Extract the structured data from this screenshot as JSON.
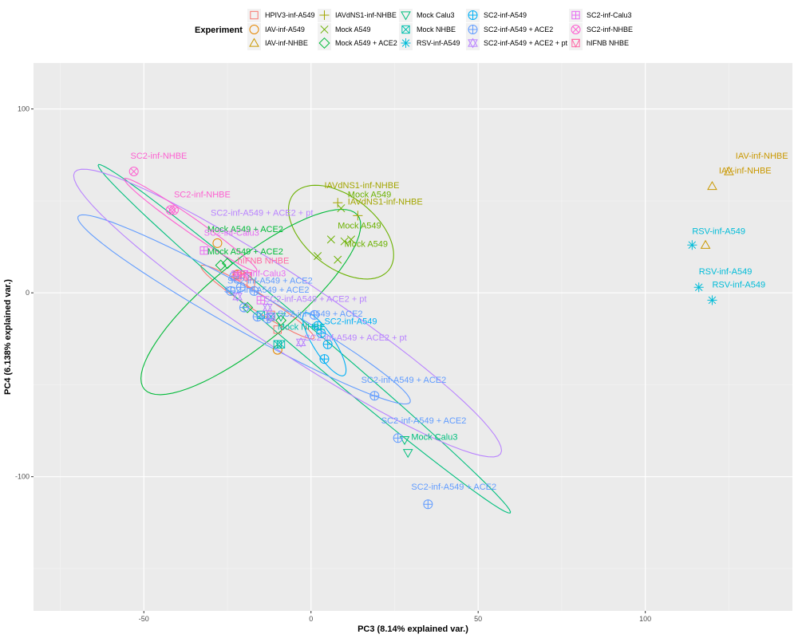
{
  "chart_data": {
    "type": "scatter",
    "xlabel": "PC3 (8.14% explained var.)",
    "ylabel": "PC4 (6.138% explained var.)",
    "xlim": [
      -83,
      144
    ],
    "ylim": [
      -173,
      125
    ],
    "x_ticks": [
      -50,
      0,
      50,
      100
    ],
    "y_ticks": [
      -100,
      0,
      100
    ],
    "grid": true,
    "background": "#EBEBEB",
    "legend_title": "Experiment",
    "legend_position": "top",
    "series": [
      {
        "name": "HPIV3-inf-A549",
        "color": "#F8766D",
        "shape": "square",
        "points": [
          [
            -22,
            10
          ],
          [
            -19,
            9
          ],
          [
            -12,
            -12
          ],
          [
            -10,
            -20
          ],
          [
            -18,
            5
          ]
        ],
        "labels": [],
        "ellipse": {
          "cx": -16,
          "cy": -5,
          "rx": 26,
          "ry": 3.5,
          "angle": -50
        }
      },
      {
        "name": "IAV-inf-A549",
        "color": "#E58700",
        "shape": "circle",
        "points": [
          [
            -28,
            27
          ],
          [
            -22,
            10
          ],
          [
            -10,
            -31
          ]
        ],
        "labels": [],
        "ellipse": null
      },
      {
        "name": "IAV-inf-NHBE",
        "color": "#C99800",
        "shape": "triangle",
        "points": [
          [
            120,
            58
          ],
          [
            125,
            66
          ],
          [
            118,
            26
          ]
        ],
        "labels": [
          {
            "x": 122,
            "y": 65,
            "text": "IAV-inf-NHBE"
          },
          {
            "x": 127,
            "y": 73,
            "text": "IAV-inf-NHBE"
          }
        ],
        "ellipse": null
      },
      {
        "name": "IAVdNS1-inf-NHBE",
        "color": "#A3A500",
        "shape": "plus",
        "points": [
          [
            8,
            49
          ],
          [
            14,
            42
          ]
        ],
        "labels": [
          {
            "x": 4,
            "y": 57,
            "text": "IAVdNS1-inf-NHBE"
          },
          {
            "x": 11,
            "y": 48,
            "text": "IAVdNS1-inf-NHBE"
          }
        ],
        "ellipse": null
      },
      {
        "name": "Mock A549",
        "color": "#6BB100",
        "shape": "cross",
        "points": [
          [
            2,
            20
          ],
          [
            6,
            29
          ],
          [
            8,
            18
          ],
          [
            10,
            28
          ],
          [
            12,
            29
          ],
          [
            9,
            46
          ]
        ],
        "labels": [
          {
            "x": 11,
            "y": 52,
            "text": "Mock A549"
          },
          {
            "x": 8,
            "y": 35,
            "text": "Mock A549"
          },
          {
            "x": 10,
            "y": 25,
            "text": "Mock A549"
          }
        ],
        "ellipse": {
          "cx": 9,
          "cy": 33,
          "rx": 13,
          "ry": 27,
          "angle": 22
        }
      },
      {
        "name": "Mock A549 + ACE2",
        "color": "#00BA38",
        "shape": "diamond",
        "points": [
          [
            -27,
            15
          ],
          [
            -25,
            16
          ],
          [
            -19,
            -8
          ],
          [
            -9,
            -15
          ]
        ],
        "labels": [
          {
            "x": -31,
            "y": 33,
            "text": "Mock A549 + ACE2"
          },
          {
            "x": -31,
            "y": 21,
            "text": "Mock A549 + ACE2"
          }
        ],
        "ellipse": {
          "cx": -18,
          "cy": -5,
          "rx": 16,
          "ry": 58,
          "angle": -31
        }
      },
      {
        "name": "Mock Calu3",
        "color": "#00BF7D",
        "shape": "trinv",
        "points": [
          [
            28,
            -80
          ],
          [
            29,
            -87
          ],
          [
            -9,
            -13
          ]
        ],
        "labels": [
          {
            "x": 30,
            "y": -80,
            "text": "Mock Calu3"
          }
        ],
        "ellipse": {
          "cx": -2,
          "cy": -25,
          "rx": 113,
          "ry": 5,
          "angle": -57
        }
      },
      {
        "name": "Mock NHBE",
        "color": "#00C0AF",
        "shape": "squarex",
        "points": [
          [
            -15,
            -12
          ],
          [
            -12,
            -13
          ],
          [
            -10,
            -28
          ],
          [
            -9,
            -28
          ]
        ],
        "labels": [
          {
            "x": -10,
            "y": -20,
            "text": "Mock NHBE"
          }
        ],
        "ellipse": null
      },
      {
        "name": "RSV-inf-A549",
        "color": "#00BCD8",
        "shape": "asterisk",
        "points": [
          [
            114,
            26
          ],
          [
            116,
            3
          ],
          [
            120,
            -4
          ]
        ],
        "labels": [
          {
            "x": 114,
            "y": 32,
            "text": "RSV-inf-A549"
          },
          {
            "x": 116,
            "y": 10,
            "text": "RSV-inf-A549"
          },
          {
            "x": 120,
            "y": 3,
            "text": "RSV-inf-A549"
          }
        ],
        "ellipse": null
      },
      {
        "name": "SC2-inf-A549",
        "color": "#00B0F6",
        "shape": "circleplus",
        "points": [
          [
            3,
            -22
          ],
          [
            5,
            -28
          ],
          [
            4,
            -36
          ],
          [
            2,
            -18
          ]
        ],
        "labels": [
          {
            "x": 4,
            "y": -17,
            "text": "SC2-inf-A549"
          }
        ],
        "ellipse": {
          "cx": 4,
          "cy": -28,
          "rx": 18,
          "ry": 3.5,
          "angle": -72
        }
      },
      {
        "name": "SC2-inf-A549 + ACE2",
        "color": "#619CFF",
        "shape": "circleplus",
        "points": [
          [
            19,
            -56
          ],
          [
            26,
            -79
          ],
          [
            35,
            -115
          ],
          [
            -24,
            1
          ],
          [
            -21,
            3
          ],
          [
            -17,
            1
          ],
          [
            -13,
            -14
          ],
          [
            1,
            -12
          ],
          [
            -23,
            9
          ],
          [
            -20,
            -8
          ],
          [
            -16,
            -13
          ]
        ],
        "labels": [
          {
            "x": 15,
            "y": -49,
            "text": "SC2-inf-A549 + ACE2"
          },
          {
            "x": 21,
            "y": -71,
            "text": "SC2-inf-A549 + ACE2"
          },
          {
            "x": 30,
            "y": -107,
            "text": "SC2-inf-A549 + ACE2"
          },
          {
            "x": -25,
            "y": 5,
            "text": "SC2-inf-A549 + ACE2"
          },
          {
            "x": -26,
            "y": 0,
            "text": "SC2-inf-A549 + ACE2"
          },
          {
            "x": -10,
            "y": -13,
            "text": "SC2-inf-A549 + ACE2"
          }
        ],
        "ellipse": {
          "cx": -20,
          "cy": -9,
          "rx": 71,
          "ry": 9,
          "angle": -46
        }
      },
      {
        "name": "SC2-inf-A549 + ACE2 + pt",
        "color": "#B983FF",
        "shape": "star",
        "points": [
          [
            -13,
            -8
          ],
          [
            -12,
            -13
          ],
          [
            -3,
            -27
          ],
          [
            -22,
            -2
          ]
        ],
        "labels": [
          {
            "x": -30,
            "y": 42,
            "text": "SC2-inf-A549 + ACE2 + pt"
          },
          {
            "x": -14,
            "y": -5,
            "text": "SC2-inf-A549 + ACE2 + pt"
          },
          {
            "x": -2,
            "y": -26,
            "text": "SC2-inf-A549 + ACE2 + pt"
          }
        ],
        "ellipse": {
          "cx": -7,
          "cy": -11,
          "rx": 100,
          "ry": 15,
          "angle": -51
        }
      },
      {
        "name": "SC2-inf-Calu3",
        "color": "#E76BF3",
        "shape": "squareplus",
        "points": [
          [
            -32,
            23
          ],
          [
            -20,
            10
          ],
          [
            -15,
            -4
          ]
        ],
        "labels": [
          {
            "x": -32,
            "y": 31,
            "text": "SC2-inf-Calu3"
          },
          {
            "x": -24,
            "y": 9,
            "text": "SC2-inf-Calu3"
          }
        ],
        "ellipse": null
      },
      {
        "name": "SC2-inf-NHBE",
        "color": "#FD61D1",
        "shape": "circlex",
        "points": [
          [
            -53,
            66
          ],
          [
            -42,
            45
          ],
          [
            -41,
            45
          ]
        ],
        "labels": [
          {
            "x": -54,
            "y": 73,
            "text": "SC2-inf-NHBE"
          },
          {
            "x": -41,
            "y": 52,
            "text": "SC2-inf-NHBE"
          }
        ],
        "ellipse": {
          "cx": -36,
          "cy": 37,
          "rx": 32,
          "ry": 3,
          "angle": -52
        }
      },
      {
        "name": "hIFNB NHBE",
        "color": "#FF67A4",
        "shape": "squaretri",
        "points": [
          [
            -22,
            9
          ],
          [
            -21,
            10
          ],
          [
            -19,
            9
          ]
        ],
        "labels": [
          {
            "x": -22,
            "y": 16,
            "text": "hIFNB NHBE"
          }
        ],
        "ellipse": null
      }
    ]
  }
}
